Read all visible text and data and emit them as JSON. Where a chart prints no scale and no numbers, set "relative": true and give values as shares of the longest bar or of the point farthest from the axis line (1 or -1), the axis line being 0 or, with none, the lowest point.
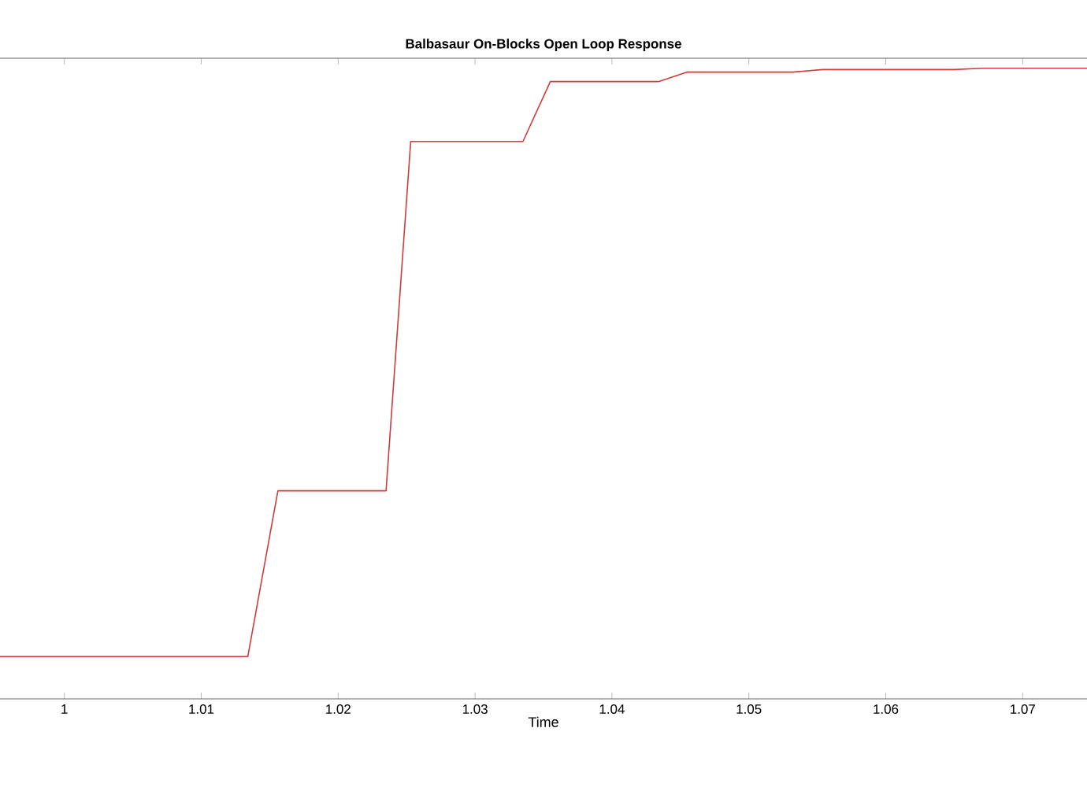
{
  "chart_data": {
    "type": "line",
    "title": "Balbasaur On-Blocks Open Loop Response",
    "xlabel": "Time",
    "relative": true,
    "xlim": [
      0.9953,
      1.0747
    ],
    "xticks": [
      1,
      1.01,
      1.02,
      1.03,
      1.04,
      1.05,
      1.06,
      1.07
    ],
    "series": [
      {
        "color": "#d03a3a",
        "x": [
          0.9953,
          1.0134,
          1.0156,
          1.0235,
          1.0253,
          1.0335,
          1.0355,
          1.0434,
          1.0455,
          1.0532,
          1.0554,
          1.065,
          1.067,
          1.0747
        ],
        "values": [
          0.067,
          0.067,
          0.33,
          0.33,
          0.884,
          0.884,
          0.979,
          0.979,
          0.994,
          0.994,
          0.998,
          0.998,
          1,
          1
        ]
      }
    ]
  }
}
